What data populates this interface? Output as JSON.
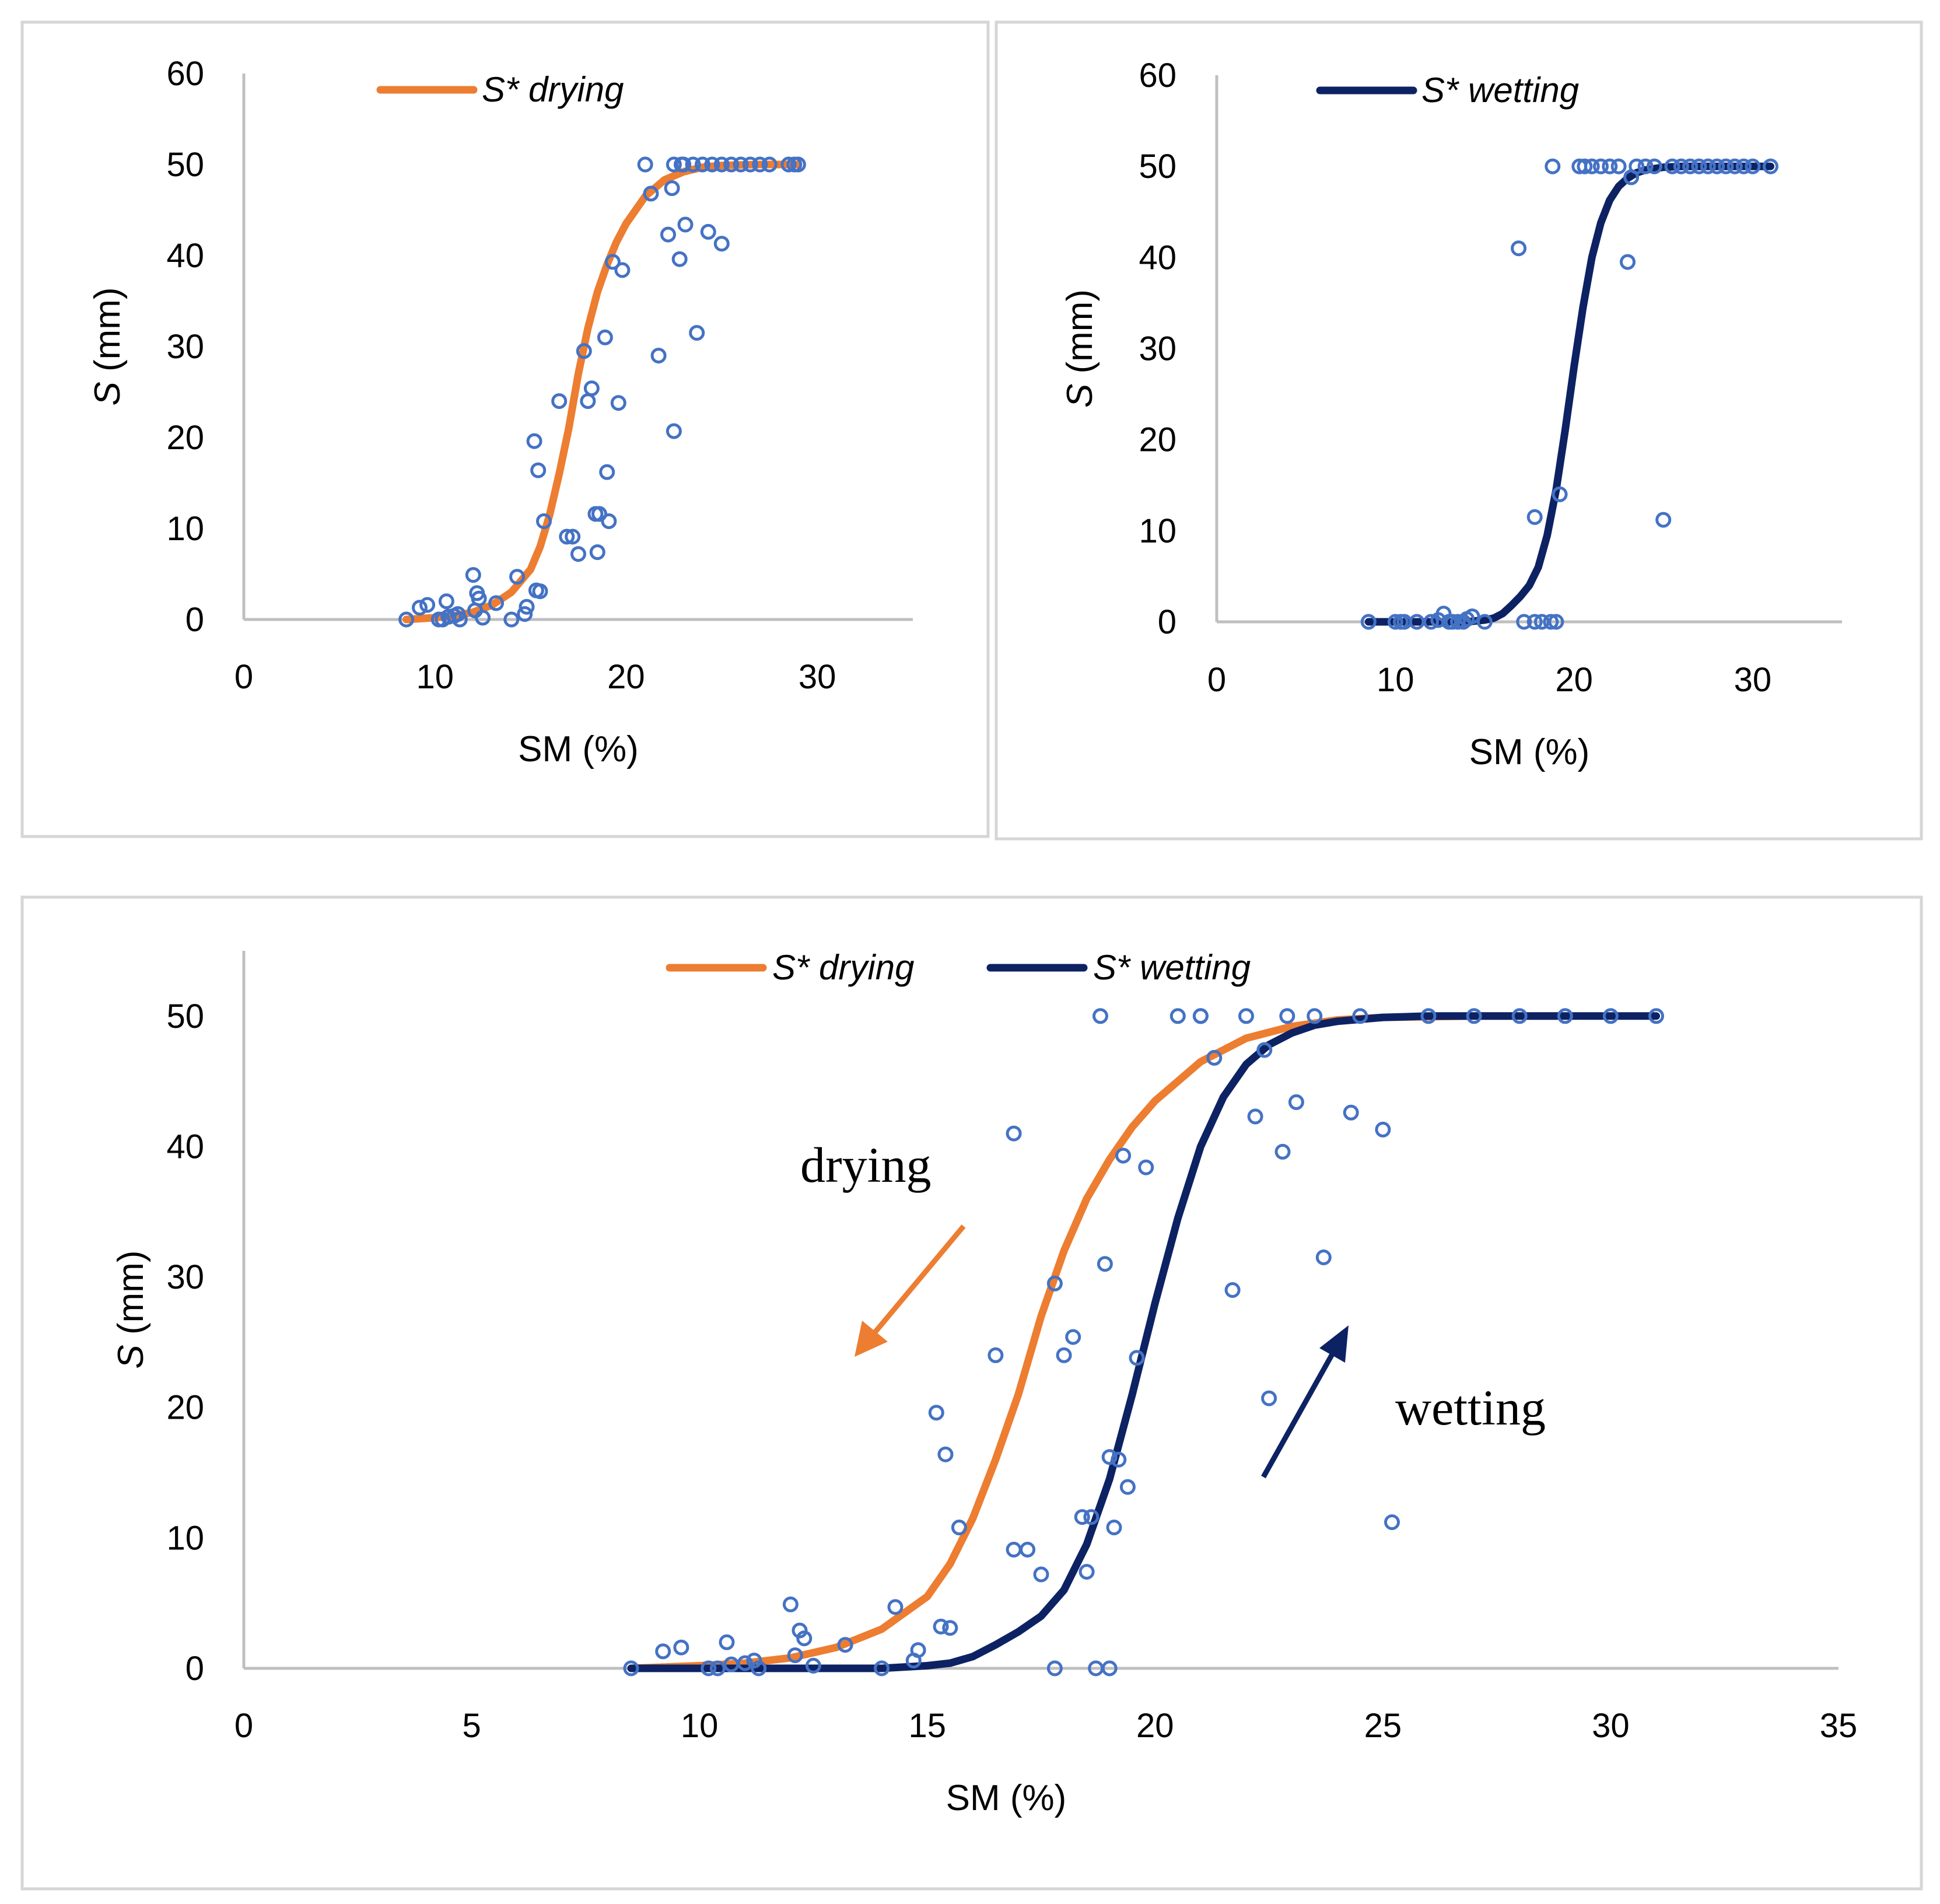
{
  "chart_data": [
    {
      "id": "drying",
      "type": "scatter",
      "title": "",
      "xlabel": "SM (%)",
      "ylabel_italic": "S",
      "ylabel_rest": " (mm)",
      "xlim": [
        0,
        35
      ],
      "ylim": [
        0,
        60
      ],
      "xticks": [
        0,
        10,
        20,
        30
      ],
      "yticks": [
        0,
        10,
        20,
        30,
        40,
        50,
        60
      ],
      "legend": [
        {
          "label": "S* drying",
          "color": "#ED7D31"
        }
      ],
      "curves": [
        {
          "name": "S* drying",
          "color": "#ED7D31",
          "x": [
            8.5,
            10,
            11,
            12,
            13,
            14,
            15,
            15.5,
            16,
            16.5,
            17,
            17.5,
            18,
            18.5,
            19,
            19.5,
            20,
            21,
            22,
            23,
            24,
            25,
            27,
            29
          ],
          "y": [
            0,
            0.2,
            0.4,
            0.8,
            1.6,
            3,
            5.5,
            8,
            11.5,
            16,
            21,
            27,
            32,
            36,
            39,
            41.5,
            43.5,
            46.5,
            48.3,
            49.2,
            49.7,
            49.9,
            50,
            50
          ]
        }
      ],
      "points": {
        "name": "observations",
        "color": "#4472C4",
        "x": [
          8.5,
          9.2,
          9.6,
          10.2,
          10.4,
          10.6,
          10.7,
          11,
          11.2,
          11.3,
          12,
          12.1,
          12.2,
          12.3,
          12.5,
          13.2,
          14,
          14.3,
          14.7,
          14.8,
          15.2,
          15.3,
          15.4,
          15.5,
          15.7,
          16.5,
          16.9,
          17.2,
          17.5,
          17.8,
          18,
          18.2,
          18.4,
          18.5,
          18.6,
          18.9,
          19,
          19.1,
          19.3,
          19.6,
          19.8,
          21,
          21.3,
          21.7,
          22.2,
          22.4,
          22.5,
          22.8,
          22.9,
          23.1,
          23.7,
          24.3,
          25,
          22.5,
          23,
          23.5,
          24,
          24.5,
          25,
          25.5,
          26,
          26.5,
          27,
          27.5,
          28.5,
          28.8,
          29
        ],
        "y": [
          0,
          1.3,
          1.6,
          0,
          0,
          2,
          0.3,
          0.4,
          0.6,
          0,
          4.9,
          1,
          2.9,
          2.3,
          0.2,
          1.8,
          0,
          4.7,
          0.6,
          1.4,
          19.6,
          3.2,
          16.4,
          3.1,
          10.8,
          24,
          9.1,
          9.1,
          7.2,
          29.5,
          24,
          25.4,
          11.6,
          7.4,
          11.6,
          31,
          16.2,
          10.8,
          39.3,
          23.8,
          38.4,
          50,
          46.8,
          29,
          42.3,
          47.4,
          20.7,
          39.6,
          50,
          43.4,
          31.5,
          42.6,
          41.3,
          50,
          50,
          50,
          50,
          50,
          50,
          50,
          50,
          50,
          50,
          50,
          50,
          50,
          50
        ]
      }
    },
    {
      "id": "wetting",
      "type": "scatter",
      "title": "",
      "xlabel": "SM (%)",
      "ylabel_italic": "S",
      "ylabel_rest": " (mm)",
      "xlim": [
        0,
        35
      ],
      "ylim": [
        0,
        60
      ],
      "xticks": [
        0,
        10,
        20,
        30
      ],
      "yticks": [
        0,
        10,
        20,
        30,
        40,
        50,
        60
      ],
      "legend": [
        {
          "label": "S* wetting",
          "color": "#0D2263"
        }
      ],
      "curves": [
        {
          "name": "S* wetting",
          "color": "#0D2263",
          "x": [
            8.5,
            10,
            12,
            14,
            15,
            15.5,
            16,
            16.5,
            17,
            17.5,
            18,
            18.5,
            19,
            19.5,
            20,
            20.5,
            21,
            21.5,
            22,
            22.5,
            23,
            23.5,
            24,
            25,
            26,
            28,
            31
          ],
          "y": [
            0,
            0,
            0,
            0,
            0.2,
            0.4,
            0.9,
            1.8,
            2.8,
            4,
            6,
            9.5,
            14.5,
            21,
            28,
            34.5,
            40,
            43.8,
            46.3,
            47.8,
            48.7,
            49.3,
            49.6,
            49.9,
            50,
            50,
            50
          ]
        }
      ],
      "points": {
        "name": "observations",
        "color": "#4472C4",
        "x": [
          8.5,
          10,
          10.3,
          10.5,
          11.2,
          12,
          12.4,
          12.7,
          13,
          13.2,
          13.5,
          13.8,
          14,
          14.3,
          15,
          16.9,
          17.2,
          17.8,
          17.8,
          18.2,
          18.7,
          18.8,
          19,
          19.2,
          20.3,
          20.6,
          21,
          21.5,
          22,
          22.5,
          23,
          23.2,
          23.5,
          24,
          24.5,
          25,
          25.5,
          26,
          26.5,
          27,
          27.5,
          28,
          28.5,
          29,
          29.5,
          30,
          31
        ],
        "y": [
          0,
          0,
          0,
          0,
          0,
          0,
          0.2,
          0.9,
          0,
          0,
          0,
          0,
          0.3,
          0.6,
          0,
          41,
          0,
          11.5,
          0,
          0,
          0,
          50,
          0,
          14,
          50,
          50,
          50,
          50,
          50,
          50,
          39.5,
          48.8,
          50,
          50,
          50,
          11.2,
          50,
          50,
          50,
          50,
          50,
          50,
          50,
          50,
          50,
          50,
          50
        ]
      }
    },
    {
      "id": "combined",
      "type": "scatter",
      "title": "",
      "xlabel": "SM (%)",
      "ylabel_italic": "S",
      "ylabel_rest": " (mm)",
      "xlim": [
        0,
        35
      ],
      "ylim": [
        0,
        55
      ],
      "xticks": [
        0,
        5,
        10,
        15,
        20,
        25,
        30,
        35
      ],
      "yticks": [
        0,
        10,
        20,
        30,
        40,
        50
      ],
      "legend": [
        {
          "label": "S* drying",
          "color": "#ED7D31"
        },
        {
          "label": "S* wetting",
          "color": "#0D2263"
        }
      ],
      "curves": [
        {
          "name": "S* drying",
          "color": "#ED7D31",
          "x": [
            8.5,
            10,
            11,
            12,
            13,
            14,
            15,
            15.5,
            16,
            16.5,
            17,
            17.5,
            18,
            18.5,
            19,
            19.5,
            20,
            21,
            22,
            23,
            24,
            25,
            27,
            29
          ],
          "y": [
            0,
            0.2,
            0.4,
            0.8,
            1.6,
            3,
            5.5,
            8,
            11.5,
            16,
            21,
            27,
            32,
            36,
            39,
            41.5,
            43.5,
            46.5,
            48.3,
            49.2,
            49.7,
            49.9,
            50,
            50
          ]
        },
        {
          "name": "S* wetting",
          "color": "#0D2263",
          "x": [
            8.5,
            10,
            12,
            14,
            15,
            15.5,
            16,
            16.5,
            17,
            17.5,
            18,
            18.5,
            19,
            19.5,
            20,
            20.5,
            21,
            21.5,
            22,
            22.5,
            23,
            23.5,
            24,
            25,
            26,
            28,
            31
          ],
          "y": [
            0,
            0,
            0,
            0,
            0.2,
            0.4,
            0.9,
            1.8,
            2.8,
            4,
            6,
            9.5,
            14.5,
            21,
            28,
            34.5,
            40,
            43.8,
            46.3,
            47.8,
            48.7,
            49.3,
            49.6,
            49.9,
            50,
            50,
            50
          ]
        }
      ],
      "points": {
        "name": "observations",
        "color": "#4472C4",
        "x": [
          8.5,
          9.2,
          9.6,
          10.2,
          10.4,
          10.6,
          10.7,
          11,
          11.2,
          11.3,
          12,
          12.1,
          12.2,
          12.3,
          12.5,
          13.2,
          14,
          14.3,
          14.7,
          14.8,
          15.2,
          15.3,
          15.4,
          15.5,
          15.7,
          16.5,
          16.9,
          17.2,
          17.5,
          17.8,
          18,
          18.2,
          18.4,
          18.5,
          18.6,
          18.9,
          19,
          19.1,
          19.3,
          19.6,
          19.8,
          21,
          21.3,
          21.7,
          22.2,
          22.4,
          22.5,
          22.8,
          22.9,
          23.1,
          23.7,
          24.3,
          25,
          25.2,
          16.9,
          17.8,
          18.7,
          18.8,
          19,
          19.2,
          19.4,
          20.5,
          21,
          22,
          23.5,
          24.5,
          26,
          27,
          28,
          29,
          30,
          31
        ],
        "y": [
          0,
          1.3,
          1.6,
          0,
          0,
          2,
          0.3,
          0.4,
          0.6,
          0,
          4.9,
          1,
          2.9,
          2.3,
          0.2,
          1.8,
          0,
          4.7,
          0.6,
          1.4,
          19.6,
          3.2,
          16.4,
          3.1,
          10.8,
          24,
          9.1,
          9.1,
          7.2,
          29.5,
          24,
          25.4,
          11.6,
          7.4,
          11.6,
          31,
          16.2,
          10.8,
          39.3,
          23.8,
          38.4,
          50,
          46.8,
          29,
          42.3,
          47.4,
          20.7,
          39.6,
          50,
          43.4,
          31.5,
          42.6,
          41.3,
          11.2,
          41,
          0,
          0,
          50,
          0,
          16,
          13.9,
          50,
          50,
          50,
          50,
          50,
          50,
          50,
          50,
          50,
          50,
          50
        ]
      },
      "annotations": {
        "drying_label": "drying",
        "wetting_label": "wetting",
        "drying_color": "#ED7D31",
        "wetting_color": "#0D2263"
      }
    }
  ]
}
